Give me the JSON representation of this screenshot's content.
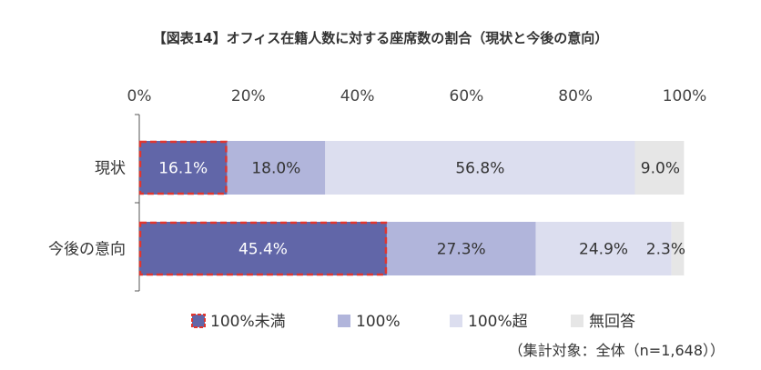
{
  "chart_data": {
    "type": "stacked-bar-horizontal",
    "title": "【図表14】オフィス在籍人数に対する座席数の割合（現状と今後の意向）",
    "xlim": [
      0,
      100
    ],
    "x_ticks": [
      "0%",
      "20%",
      "40%",
      "60%",
      "80%",
      "100%"
    ],
    "categories": [
      "現状",
      "今後の意向"
    ],
    "series": [
      {
        "name": "100%未満",
        "values": [
          16.1,
          45.4
        ],
        "labels": [
          "16.1%",
          "45.4%"
        ],
        "color": "#6166a8",
        "label_color": "#ffffff",
        "highlight": true
      },
      {
        "name": "100%",
        "values": [
          18.0,
          27.3
        ],
        "labels": [
          "18.0%",
          "27.3%"
        ],
        "color": "#b1b5db",
        "label_color": "#333333",
        "highlight": false
      },
      {
        "name": "100%超",
        "values": [
          56.8,
          24.9
        ],
        "labels": [
          "56.8%",
          "24.9%"
        ],
        "color": "#dcdeef",
        "label_color": "#333333",
        "highlight": false
      },
      {
        "name": "無回答",
        "values": [
          9.0,
          2.3
        ],
        "labels": [
          "9.0%",
          "2.3%"
        ],
        "color": "#e6e6e6",
        "label_color": "#333333",
        "highlight": false
      }
    ],
    "legend_position": "bottom",
    "highlight_color": "#e0362f",
    "note": "（集計対象：全体（n=1,648））"
  }
}
